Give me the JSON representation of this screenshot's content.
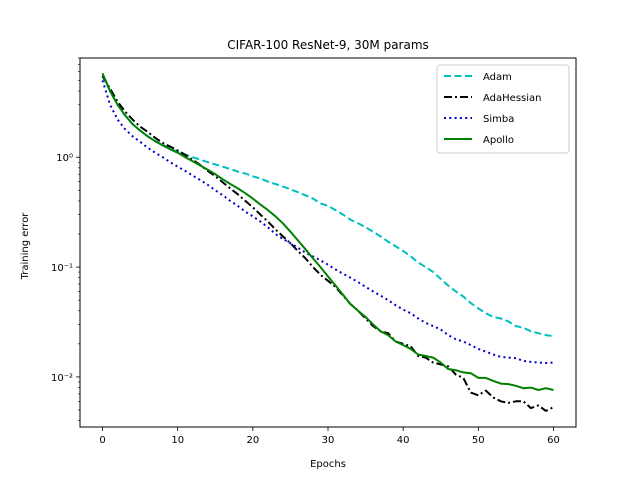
{
  "chart_data": {
    "type": "line",
    "title": "CIFAR-100 ResNet-9, 30M params",
    "xlabel": "Epochs",
    "ylabel": "Training error",
    "yscale": "log",
    "xlim": [
      -3,
      63
    ],
    "ylim": [
      0.0035,
      8
    ],
    "xticks": [
      0,
      10,
      20,
      30,
      40,
      50,
      60
    ],
    "xtick_labels": [
      "0",
      "10",
      "20",
      "30",
      "40",
      "50",
      "60"
    ],
    "yticks": [
      0.01,
      0.1,
      1
    ],
    "ytick_labels": [
      "10⁻²",
      "10⁻¹",
      "10⁰"
    ],
    "legend_position": "top-right",
    "series": [
      {
        "name": "Adam",
        "color": "#00bfbf",
        "linestyle": "dashed",
        "x": [
          0,
          1,
          2,
          3,
          4,
          5,
          6,
          7,
          8,
          9,
          10,
          11,
          12,
          13,
          14,
          15,
          16,
          17,
          18,
          19,
          20,
          21,
          22,
          23,
          24,
          25,
          26,
          27,
          28,
          29,
          30,
          31,
          32,
          33,
          34,
          35,
          36,
          37,
          38,
          39,
          40,
          41,
          42,
          43,
          44,
          45,
          46,
          47,
          48,
          49,
          50,
          51,
          52,
          53,
          54,
          55,
          56,
          57,
          58,
          59,
          60
        ],
        "y": [
          5.5,
          4.0,
          3.0,
          2.4,
          2.0,
          1.75,
          1.55,
          1.4,
          1.3,
          1.2,
          1.12,
          1.06,
          1.0,
          0.95,
          0.9,
          0.86,
          0.82,
          0.78,
          0.74,
          0.71,
          0.67,
          0.64,
          0.6,
          0.57,
          0.54,
          0.51,
          0.48,
          0.45,
          0.42,
          0.38,
          0.36,
          0.33,
          0.3,
          0.27,
          0.25,
          0.23,
          0.21,
          0.19,
          0.17,
          0.155,
          0.14,
          0.125,
          0.11,
          0.1,
          0.09,
          0.078,
          0.068,
          0.06,
          0.054,
          0.047,
          0.042,
          0.038,
          0.035,
          0.034,
          0.032,
          0.029,
          0.028,
          0.026,
          0.025,
          0.024,
          0.0235
        ]
      },
      {
        "name": "AdaHessian",
        "color": "#000000",
        "linestyle": "dashdot",
        "x": [
          0,
          1,
          2,
          3,
          4,
          5,
          6,
          7,
          8,
          9,
          10,
          11,
          12,
          13,
          14,
          15,
          16,
          17,
          18,
          19,
          20,
          21,
          22,
          23,
          24,
          25,
          26,
          27,
          28,
          29,
          30,
          31,
          32,
          33,
          34,
          35,
          36,
          37,
          38,
          39,
          40,
          41,
          42,
          43,
          44,
          45,
          46,
          47,
          48,
          49,
          50,
          51,
          52,
          53,
          54,
          55,
          56,
          57,
          58,
          59,
          60
        ],
        "y": [
          5.5,
          4.2,
          3.2,
          2.6,
          2.2,
          1.9,
          1.7,
          1.5,
          1.35,
          1.25,
          1.15,
          1.05,
          0.95,
          0.85,
          0.75,
          0.67,
          0.59,
          0.52,
          0.46,
          0.4,
          0.35,
          0.3,
          0.26,
          0.22,
          0.19,
          0.165,
          0.14,
          0.12,
          0.1,
          0.085,
          0.075,
          0.066,
          0.055,
          0.046,
          0.04,
          0.034,
          0.029,
          0.026,
          0.025,
          0.021,
          0.02,
          0.019,
          0.0155,
          0.015,
          0.0135,
          0.013,
          0.0125,
          0.0105,
          0.0098,
          0.0072,
          0.0068,
          0.0075,
          0.0065,
          0.006,
          0.0058,
          0.006,
          0.006,
          0.0052,
          0.0055,
          0.0049,
          0.0053
        ]
      },
      {
        "name": "Simba",
        "color": "#0000cc",
        "linestyle": "dotted",
        "x": [
          0,
          1,
          2,
          3,
          4,
          5,
          6,
          7,
          8,
          9,
          10,
          11,
          12,
          13,
          14,
          15,
          16,
          17,
          18,
          19,
          20,
          21,
          22,
          23,
          24,
          25,
          26,
          27,
          28,
          29,
          30,
          31,
          32,
          33,
          34,
          35,
          36,
          37,
          38,
          39,
          40,
          41,
          42,
          43,
          44,
          45,
          46,
          47,
          48,
          49,
          50,
          51,
          52,
          53,
          54,
          55,
          56,
          57,
          58,
          59,
          60
        ],
        "y": [
          5.0,
          3.0,
          2.2,
          1.8,
          1.55,
          1.38,
          1.22,
          1.1,
          1.0,
          0.9,
          0.82,
          0.75,
          0.68,
          0.62,
          0.56,
          0.5,
          0.45,
          0.4,
          0.36,
          0.32,
          0.29,
          0.26,
          0.23,
          0.2,
          0.18,
          0.165,
          0.15,
          0.135,
          0.125,
          0.115,
          0.105,
          0.095,
          0.087,
          0.08,
          0.073,
          0.066,
          0.06,
          0.055,
          0.05,
          0.045,
          0.041,
          0.038,
          0.034,
          0.031,
          0.029,
          0.027,
          0.024,
          0.022,
          0.021,
          0.0195,
          0.018,
          0.017,
          0.016,
          0.0152,
          0.015,
          0.0148,
          0.014,
          0.0137,
          0.0135,
          0.0134,
          0.0135
        ]
      },
      {
        "name": "Apollo",
        "color": "#008000",
        "linestyle": "solid",
        "x": [
          0,
          1,
          2,
          3,
          4,
          5,
          6,
          7,
          8,
          9,
          10,
          11,
          12,
          13,
          14,
          15,
          16,
          17,
          18,
          19,
          20,
          21,
          22,
          23,
          24,
          25,
          26,
          27,
          28,
          29,
          30,
          31,
          32,
          33,
          34,
          35,
          36,
          37,
          38,
          39,
          40,
          41,
          42,
          43,
          44,
          45,
          46,
          47,
          48,
          49,
          50,
          51,
          52,
          53,
          54,
          55,
          56,
          57,
          58,
          59,
          60
        ],
        "y": [
          5.8,
          4.0,
          3.0,
          2.4,
          2.0,
          1.75,
          1.55,
          1.4,
          1.28,
          1.18,
          1.1,
          1.0,
          0.92,
          0.84,
          0.77,
          0.7,
          0.63,
          0.57,
          0.52,
          0.47,
          0.42,
          0.37,
          0.33,
          0.29,
          0.25,
          0.21,
          0.175,
          0.145,
          0.12,
          0.1,
          0.082,
          0.068,
          0.056,
          0.046,
          0.04,
          0.035,
          0.03,
          0.026,
          0.024,
          0.021,
          0.0195,
          0.018,
          0.016,
          0.0155,
          0.015,
          0.0135,
          0.0118,
          0.0115,
          0.011,
          0.0108,
          0.0098,
          0.0098,
          0.0092,
          0.0087,
          0.0086,
          0.0083,
          0.0079,
          0.008,
          0.0076,
          0.0079,
          0.0076
        ]
      }
    ]
  }
}
